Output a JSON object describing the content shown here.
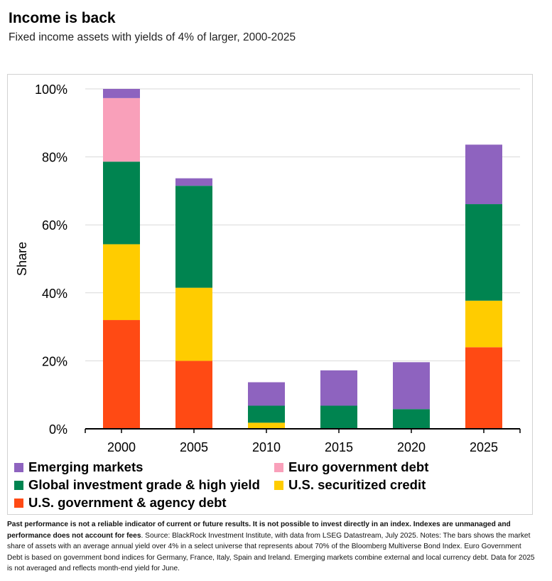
{
  "title": "Income is back",
  "subtitle": "Fixed income assets with yields of 4% of larger, 2000-2025",
  "colors": {
    "emerging": "#8e63bf",
    "euro": "#f9a0ba",
    "global_ig_hy": "#008450",
    "us_securitized": "#ffcc00",
    "us_gov_agency": "#ff4a14",
    "grid": "#d9d9d9",
    "axis": "#000000"
  },
  "chart_data": {
    "type": "bar",
    "stacked": true,
    "categories": [
      "2000",
      "2005",
      "2010",
      "2015",
      "2020",
      "2025"
    ],
    "ylabel": "Share",
    "xlabel": "",
    "ylim": [
      0,
      100
    ],
    "yticks": [
      0,
      20,
      40,
      60,
      80,
      100
    ],
    "ytick_labels": [
      "0%",
      "20%",
      "40%",
      "60%",
      "80%",
      "100%"
    ],
    "grid": true,
    "legend_position": "bottom",
    "series": [
      {
        "name": "U.S. government & agency debt",
        "key": "us_gov_agency",
        "values": [
          32,
          20,
          0,
          0,
          0,
          24
        ]
      },
      {
        "name": "U.S. securitized credit",
        "key": "us_securitized",
        "values": [
          22.3,
          21.5,
          1.8,
          0,
          0,
          13.7
        ]
      },
      {
        "name": "Global investment grade & high yield",
        "key": "global_ig_hy",
        "values": [
          24.3,
          30,
          5,
          6.8,
          5.8,
          28.4
        ]
      },
      {
        "name": "Euro government debt",
        "key": "euro",
        "values": [
          18.7,
          0,
          0,
          0,
          0,
          0
        ]
      },
      {
        "name": "Emerging markets",
        "key": "emerging",
        "values": [
          2.7,
          2.2,
          6.9,
          10.4,
          13.8,
          17.5
        ]
      }
    ]
  },
  "legend": [
    {
      "label": "Emerging markets",
      "key": "emerging"
    },
    {
      "label": "Euro government debt",
      "key": "euro"
    },
    {
      "label": "Global investment grade & high yield",
      "key": "global_ig_hy"
    },
    {
      "label": "U.S. securitized credit",
      "key": "us_securitized"
    },
    {
      "label": "U.S. government & agency debt",
      "key": "us_gov_agency"
    }
  ],
  "footnote": {
    "bold": "Past performance is not a reliable indicator of current or future results. It is not possible to invest directly in an index. Indexes are unmanaged and performance does not account for fees",
    "normal": ". Source: BlackRock Investment Institute, with data from LSEG Datastream, July 2025. Notes: The bars shows the market share of assets with an average annual yield over 4% in a select universe that represents about 70% of the Bloomberg Multiverse Bond Index. Euro Government Debt is based on government bond indices for Germany, France, Italy, Spain and Ireland. Emerging markets combine external and local currency debt. Data for 2025 is not averaged and reflects month-end yield for June."
  }
}
